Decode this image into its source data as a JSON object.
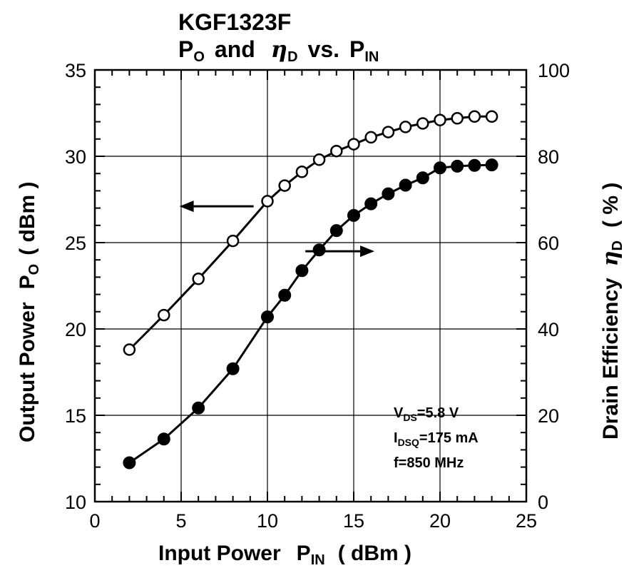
{
  "chart_data": {
    "type": "line",
    "title": {
      "line1": "KGF1323F",
      "line2": {
        "p": "P",
        "p_sub": "O",
        "and": "and",
        "eta": "η",
        "eta_sub": "D",
        "vs": "vs.",
        "pin": "P",
        "pin_sub": "IN"
      }
    },
    "xlabel": {
      "text": "Input Power",
      "p": "P",
      "p_sub": "IN",
      "unit": "( dBm )"
    },
    "ylabel_left": {
      "text": "Output Power",
      "p": "P",
      "p_sub": "O",
      "unit": "( dBm )"
    },
    "ylabel_right": {
      "text": "Drain Efficiency",
      "eta": "η",
      "eta_sub": "D",
      "unit": "( % )"
    },
    "xlim": [
      0,
      25
    ],
    "ylim_left": [
      10,
      35
    ],
    "ylim_right": [
      0,
      100
    ],
    "xticks": [
      "0",
      "5",
      "10",
      "15",
      "20",
      "25"
    ],
    "yticks_left": [
      "10",
      "15",
      "20",
      "25",
      "30",
      "35"
    ],
    "yticks_right": [
      "0",
      "20",
      "40",
      "60",
      "80",
      "100"
    ],
    "grid": true,
    "series": [
      {
        "axis": "left",
        "marker": "open-circle",
        "x": [
          2,
          4,
          6,
          8,
          10,
          11,
          12,
          13,
          14,
          15,
          16,
          17,
          18,
          19,
          20,
          21,
          22,
          23
        ],
        "y": [
          18.8,
          20.8,
          22.9,
          25.1,
          27.4,
          28.3,
          29.1,
          29.8,
          30.3,
          30.7,
          31.1,
          31.4,
          31.7,
          31.9,
          32.1,
          32.2,
          32.3,
          32.3
        ]
      },
      {
        "axis": "right",
        "marker": "filled-circle",
        "x": [
          2,
          4,
          6,
          8,
          10,
          11,
          12,
          13,
          14,
          15,
          16,
          17,
          18,
          19,
          20,
          21,
          22,
          23
        ],
        "y": [
          9,
          14.5,
          21.7,
          30.8,
          42.8,
          47.8,
          53.5,
          58.3,
          62.8,
          66.3,
          69,
          71.3,
          73.3,
          75,
          77.3,
          77.7,
          77.9,
          78
        ]
      }
    ],
    "annotations": {
      "vds": {
        "v": "V",
        "sub": "DS",
        "rest": "=5.8 V"
      },
      "idsq": {
        "i": "I",
        "sub": "DSQ",
        "rest": "=175 mA"
      },
      "freq": "f=850 MHz"
    },
    "arrows": [
      {
        "direction": "left",
        "points_to_axis": "left"
      },
      {
        "direction": "right",
        "points_to_axis": "right"
      }
    ]
  }
}
